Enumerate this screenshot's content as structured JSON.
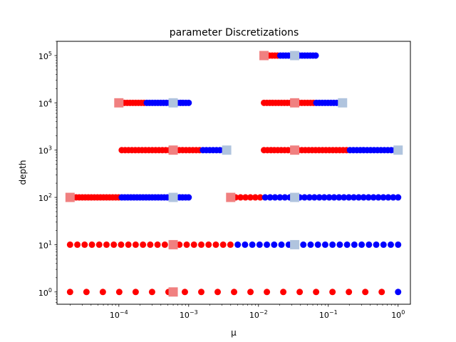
{
  "chart_data": {
    "type": "scatter",
    "title": "parameter Discretizations",
    "xlabel": "μ",
    "ylabel": "depth",
    "xscale": "log",
    "yscale": "log",
    "xlim": [
      1.3e-05,
      1.5
    ],
    "ylim": [
      0.55,
      200000
    ],
    "grid": false,
    "legend": "none",
    "x_ticks": [
      {
        "value": 0.0001,
        "mantissa": "10",
        "exp": "−4"
      },
      {
        "value": 0.001,
        "mantissa": "10",
        "exp": "−3"
      },
      {
        "value": 0.01,
        "mantissa": "10",
        "exp": "−2"
      },
      {
        "value": 0.1,
        "mantissa": "10",
        "exp": "−1"
      },
      {
        "value": 1,
        "mantissa": "10",
        "exp": "0"
      }
    ],
    "y_ticks": [
      {
        "value": 1,
        "mantissa": "10",
        "exp": "0"
      },
      {
        "value": 10,
        "mantissa": "10",
        "exp": "1"
      },
      {
        "value": 100,
        "mantissa": "10",
        "exp": "2"
      },
      {
        "value": 1000,
        "mantissa": "10",
        "exp": "3"
      },
      {
        "value": 10000,
        "mantissa": "10",
        "exp": "4"
      },
      {
        "value": 100000,
        "mantissa": "10",
        "exp": "5"
      }
    ],
    "colors": {
      "low_points": "#ff0000",
      "high_points": "#0000ff",
      "low_marker": "#f08080",
      "high_marker": "#b0c4de"
    },
    "groups": [
      {
        "depth": 1,
        "x_min": 2e-05,
        "x_max": 1,
        "x_split": 1,
        "n": 21,
        "marker_low": 0.0006,
        "marker_high": null
      },
      {
        "depth": 10,
        "x_min": 2e-05,
        "x_max": 1,
        "x_split": 0.0045,
        "n": 46,
        "marker_low": 0.0006,
        "marker_high": 0.033
      },
      {
        "depth": 100,
        "x_min": 2e-05,
        "x_max": 0.001,
        "x_split": 0.0001,
        "n": 40,
        "marker_low": 2e-05,
        "marker_high": 0.0006
      },
      {
        "depth": 100,
        "x_min": 0.004,
        "x_max": 1,
        "x_split": 0.012,
        "n": 35,
        "marker_low": 0.004,
        "marker_high": 0.033
      },
      {
        "depth": 1000,
        "x_min": 0.00011,
        "x_max": 0.0035,
        "x_split": 0.0015,
        "n": 32,
        "marker_low": 0.0006,
        "marker_high": 0.0035
      },
      {
        "depth": 1000,
        "x_min": 0.012,
        "x_max": 1,
        "x_split": 0.19,
        "n": 40,
        "marker_low": 0.033,
        "marker_high": 1
      },
      {
        "depth": 10000,
        "x_min": 0.0001,
        "x_max": 0.001,
        "x_split": 0.00025,
        "n": 26,
        "marker_low": 0.0001,
        "marker_high": 0.0006
      },
      {
        "depth": 10000,
        "x_min": 0.012,
        "x_max": 0.16,
        "x_split": 0.066,
        "n": 28,
        "marker_low": 0.033,
        "marker_high": 0.16
      },
      {
        "depth": 100000,
        "x_min": 0.012,
        "x_max": 0.066,
        "x_split": 0.02,
        "n": 20,
        "marker_low": 0.012,
        "marker_high": 0.033
      }
    ]
  }
}
